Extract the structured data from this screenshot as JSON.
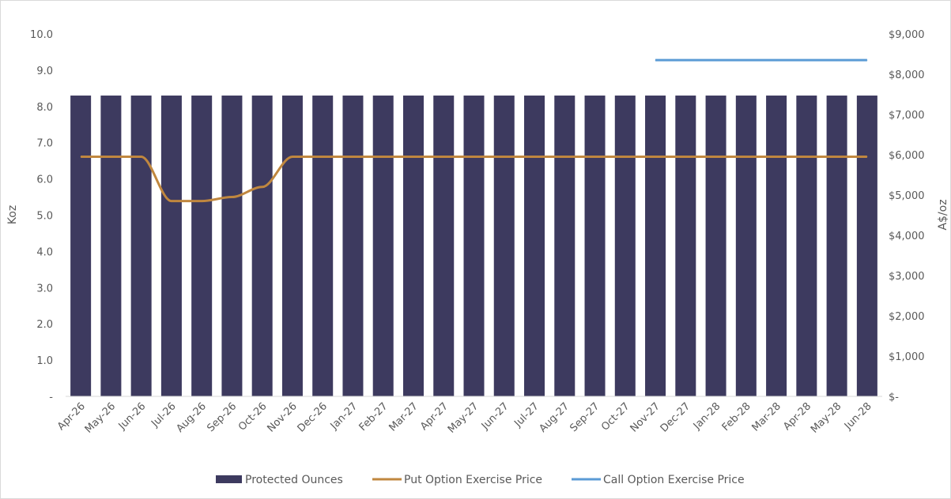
{
  "chart_data": {
    "type": "bar",
    "title": "",
    "categories": [
      "Apr-26",
      "May-26",
      "Jun-26",
      "Jul-26",
      "Aug-26",
      "Sep-26",
      "Oct-26",
      "Nov-26",
      "Dec-26",
      "Jan-27",
      "Feb-27",
      "Mar-27",
      "Apr-27",
      "May-27",
      "Jun-27",
      "Jul-27",
      "Aug-27",
      "Sep-27",
      "Oct-27",
      "Nov-27",
      "Dec-27",
      "Jan-28",
      "Feb-28",
      "Mar-28",
      "Apr-28",
      "May-28",
      "Jun-28"
    ],
    "y_left": {
      "label": "Koz",
      "ylim": [
        0,
        10
      ],
      "ticks": [
        0,
        1,
        2,
        3,
        4,
        5,
        6,
        7,
        8,
        9,
        10
      ],
      "tick_labels": [
        "-",
        "1.0",
        "2.0",
        "3.0",
        "4.0",
        "5.0",
        "6.0",
        "7.0",
        "8.0",
        "9.0",
        "10.0"
      ]
    },
    "y_right": {
      "label": "A$/oz",
      "ylim": [
        0,
        9000
      ],
      "ticks": [
        0,
        1000,
        2000,
        3000,
        4000,
        5000,
        6000,
        7000,
        8000,
        9000
      ],
      "tick_labels": [
        "$-",
        "$1,000",
        "$2,000",
        "$3,000",
        "$4,000",
        "$5,000",
        "$6,000",
        "$7,000",
        "$8,000",
        "$9,000"
      ]
    },
    "series": [
      {
        "name": "Protected Ounces",
        "kind": "bar",
        "axis": "left",
        "color": "#3d3a5f",
        "values": [
          8.3,
          8.3,
          8.3,
          8.3,
          8.3,
          8.3,
          8.3,
          8.3,
          8.3,
          8.3,
          8.3,
          8.3,
          8.3,
          8.3,
          8.3,
          8.3,
          8.3,
          8.3,
          8.3,
          8.3,
          8.3,
          8.3,
          8.3,
          8.3,
          8.3,
          8.3,
          8.3
        ]
      },
      {
        "name": "Put Option Exercise Price",
        "kind": "line",
        "axis": "right",
        "color": "#c0873f",
        "values": [
          5950,
          5950,
          5950,
          4850,
          4850,
          4950,
          5200,
          5950,
          5950,
          5950,
          5950,
          5950,
          5950,
          5950,
          5950,
          5950,
          5950,
          5950,
          5950,
          5950,
          5950,
          5950,
          5950,
          5950,
          5950,
          5950,
          5950
        ]
      },
      {
        "name": "Call Option Exercise Price",
        "kind": "line",
        "axis": "right",
        "color": "#5b9bd5",
        "values": [
          null,
          null,
          null,
          null,
          null,
          null,
          null,
          null,
          null,
          null,
          null,
          null,
          null,
          null,
          null,
          null,
          null,
          null,
          null,
          8350,
          8350,
          8350,
          8350,
          8350,
          8350,
          8350,
          8350
        ]
      }
    ],
    "grid": false,
    "legend_position": "bottom"
  }
}
